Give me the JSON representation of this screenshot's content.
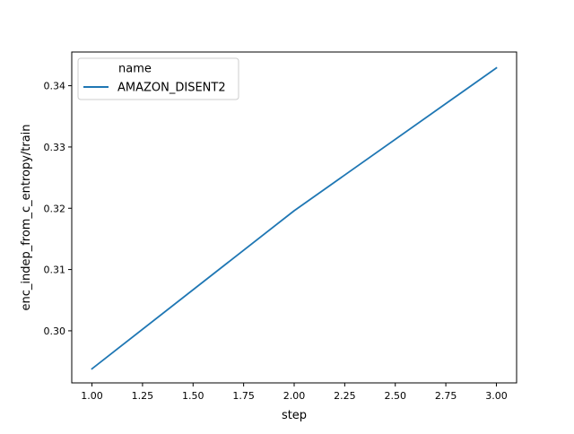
{
  "chart_data": {
    "type": "line",
    "title": "",
    "xlabel": "step",
    "ylabel": "enc_indep_from_c_entropy/train",
    "xlim": [
      0.9,
      3.1
    ],
    "ylim": [
      0.2915,
      0.3455
    ],
    "xticks": [
      1.0,
      1.25,
      1.5,
      1.75,
      2.0,
      2.25,
      2.5,
      2.75,
      3.0
    ],
    "xtick_labels": [
      "1.00",
      "1.25",
      "1.50",
      "1.75",
      "2.00",
      "2.25",
      "2.50",
      "2.75",
      "3.00"
    ],
    "yticks": [
      0.3,
      0.31,
      0.32,
      0.33,
      0.34
    ],
    "ytick_labels": [
      "0.30",
      "0.31",
      "0.32",
      "0.33",
      "0.34"
    ],
    "grid": false,
    "legend": {
      "title": "name",
      "placement": "top-left"
    },
    "series": [
      {
        "name": "AMAZON_DISENT2",
        "color": "#1f77b4",
        "x": [
          1.0,
          2.0,
          3.0
        ],
        "y": [
          0.2938,
          0.3196,
          0.3429
        ]
      }
    ]
  }
}
